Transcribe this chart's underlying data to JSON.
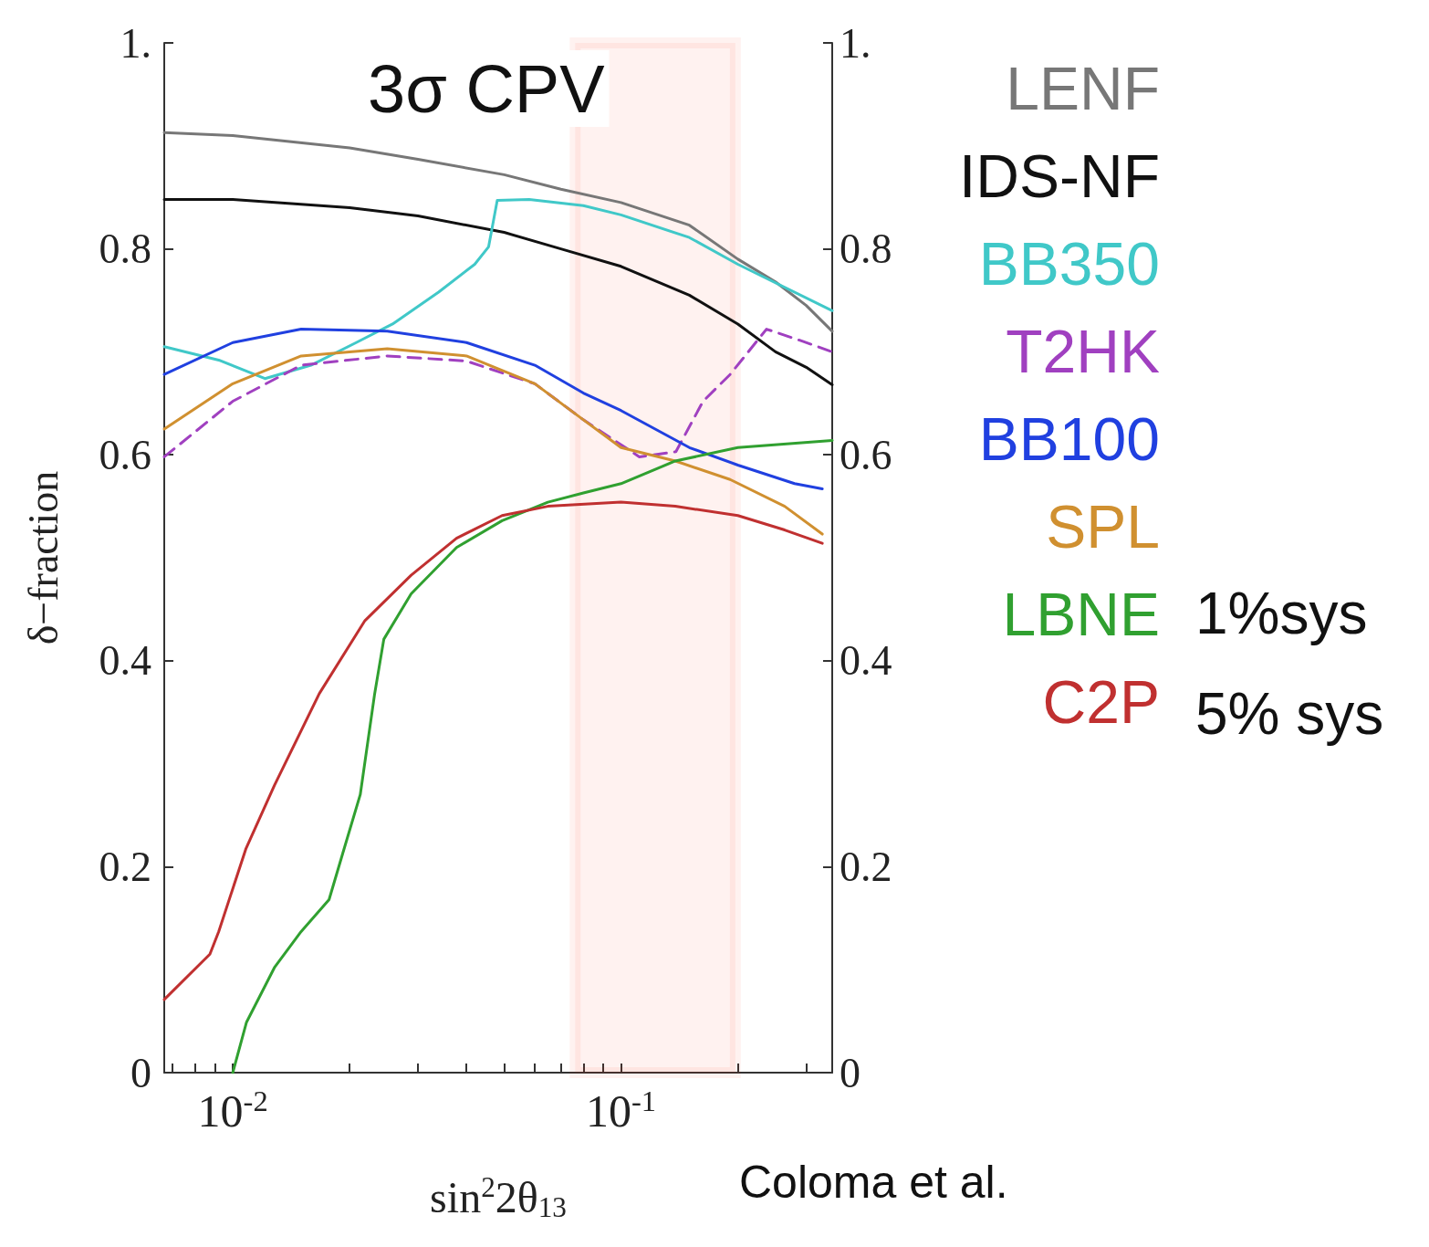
{
  "chart_data": {
    "type": "line",
    "title": "3σ CPV",
    "xlabel": "sin$^{2}$2θ$_{13}$",
    "ylabel": "δ−fraction",
    "log": "x",
    "grid": false,
    "legend": "right",
    "xlim": [
      0.00666,
      0.35
    ],
    "ylim": [
      0,
      1
    ],
    "y2lim": [
      0,
      1
    ],
    "xticks": [
      {
        "value": 0.007,
        "label": null
      },
      {
        "value": 0.008,
        "label": null
      },
      {
        "value": 0.009,
        "label": null
      },
      {
        "value": 0.01,
        "label": "10$^{-2}$"
      },
      {
        "value": 0.02,
        "label": null
      },
      {
        "value": 0.03,
        "label": null
      },
      {
        "value": 0.04,
        "label": null
      },
      {
        "value": 0.05,
        "label": null
      },
      {
        "value": 0.06,
        "label": null
      },
      {
        "value": 0.07,
        "label": null
      },
      {
        "value": 0.08,
        "label": null
      },
      {
        "value": 0.09,
        "label": null
      },
      {
        "value": 0.1,
        "label": "10$^{-1}$"
      },
      {
        "value": 0.2,
        "label": null
      },
      {
        "value": 0.3,
        "label": null
      }
    ],
    "yticks": [
      0,
      0.2,
      0.4,
      0.6,
      0.8,
      {
        "value": 1,
        "label": "1."
      }
    ],
    "y2ticks": [
      0,
      0.2,
      0.4,
      0.6,
      0.8,
      {
        "value": 1,
        "label": "1."
      }
    ],
    "bands": [
      {
        "axis": "x",
        "from": 0.0762,
        "to": 0.197,
        "color": "#ff2a00"
      }
    ],
    "annotations": [
      "1%sys",
      "5% sys",
      "Coloma et al."
    ],
    "series": [
      {
        "name": "LENF",
        "color": "#777777",
        "x": [
          0.00666,
          0.01,
          0.02,
          0.03,
          0.05,
          0.07,
          0.1,
          0.15,
          0.2,
          0.25,
          0.3,
          0.35
        ],
        "values": [
          0.913,
          0.91,
          0.898,
          0.887,
          0.872,
          0.858,
          0.845,
          0.823,
          0.79,
          0.768,
          0.745,
          0.72
        ]
      },
      {
        "name": "IDS-NF",
        "color": "#111111",
        "x": [
          0.00666,
          0.01,
          0.02,
          0.03,
          0.05,
          0.07,
          0.1,
          0.15,
          0.2,
          0.25,
          0.3,
          0.35
        ],
        "values": [
          0.848,
          0.848,
          0.84,
          0.832,
          0.816,
          0.8,
          0.783,
          0.755,
          0.727,
          0.7,
          0.685,
          0.668
        ]
      },
      {
        "name": "BB350",
        "color": "#40c8c8",
        "x": [
          0.00666,
          0.0092,
          0.0121,
          0.0159,
          0.0208,
          0.0258,
          0.0339,
          0.042,
          0.0456,
          0.048,
          0.058,
          0.08,
          0.1,
          0.15,
          0.2,
          0.35
        ],
        "values": [
          0.705,
          0.692,
          0.674,
          0.687,
          0.709,
          0.727,
          0.758,
          0.785,
          0.802,
          0.847,
          0.848,
          0.842,
          0.833,
          0.811,
          0.785,
          0.74
        ]
      },
      {
        "name": "T2HK",
        "color": "#a040c0",
        "line_style": "dashed",
        "x": [
          0.00666,
          0.01,
          0.015,
          0.025,
          0.04,
          0.06,
          0.08,
          0.1115,
          0.1385,
          0.1627,
          0.191,
          0.237,
          0.295,
          0.35
        ],
        "values": [
          0.598,
          0.652,
          0.687,
          0.696,
          0.691,
          0.669,
          0.634,
          0.598,
          0.603,
          0.652,
          0.678,
          0.722,
          0.71,
          0.7
        ]
      },
      {
        "name": "BB100",
        "color": "#2040e0",
        "x": [
          0.00666,
          0.01,
          0.015,
          0.025,
          0.04,
          0.06,
          0.08,
          0.1,
          0.15,
          0.2,
          0.28,
          0.33
        ],
        "values": [
          0.678,
          0.709,
          0.722,
          0.72,
          0.709,
          0.687,
          0.66,
          0.643,
          0.607,
          0.59,
          0.572,
          0.567
        ]
      },
      {
        "name": "SPL",
        "color": "#d09030",
        "x": [
          0.00666,
          0.01,
          0.015,
          0.025,
          0.04,
          0.06,
          0.08,
          0.1,
          0.138,
          0.191,
          0.264,
          0.33
        ],
        "values": [
          0.625,
          0.669,
          0.696,
          0.703,
          0.696,
          0.669,
          0.634,
          0.607,
          0.594,
          0.576,
          0.55,
          0.523
        ]
      },
      {
        "name": "LBNE",
        "color": "#30a030",
        "x": [
          0.01,
          0.01085,
          0.0128,
          0.015,
          0.0177,
          0.0192,
          0.0213,
          0.0232,
          0.0245,
          0.0288,
          0.0377,
          0.0494,
          0.0648,
          0.08,
          0.1,
          0.138,
          0.2,
          0.35
        ],
        "values": [
          0,
          0.049,
          0.102,
          0.137,
          0.168,
          0.213,
          0.27,
          0.368,
          0.421,
          0.465,
          0.51,
          0.536,
          0.554,
          0.563,
          0.572,
          0.594,
          0.607,
          0.614
        ]
      },
      {
        "name": "C2P",
        "color": "#c03030",
        "x": [
          0.00666,
          0.00873,
          0.0092,
          0.0108,
          0.0128,
          0.0167,
          0.0219,
          0.0288,
          0.0377,
          0.0494,
          0.0648,
          0.1,
          0.138,
          0.2,
          0.264,
          0.33
        ],
        "values": [
          0.071,
          0.115,
          0.137,
          0.217,
          0.279,
          0.368,
          0.439,
          0.483,
          0.519,
          0.541,
          0.55,
          0.554,
          0.55,
          0.541,
          0.527,
          0.514
        ]
      }
    ]
  }
}
